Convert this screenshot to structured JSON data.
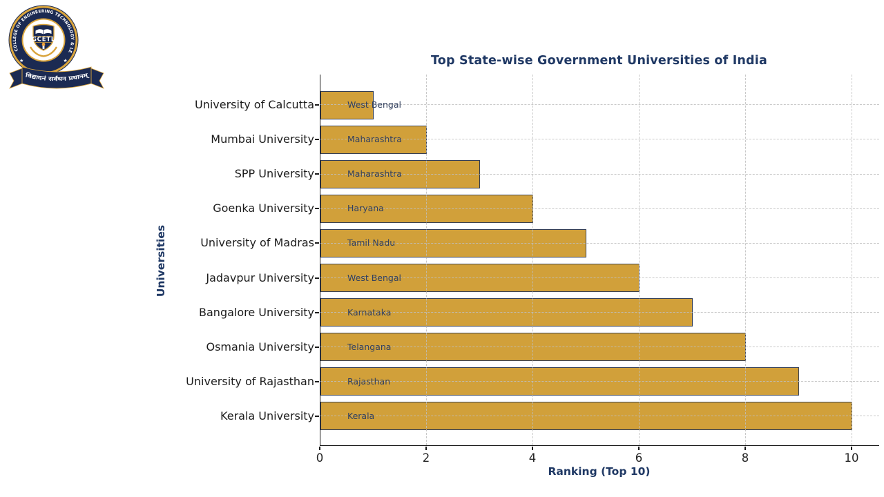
{
  "logo": {
    "ring_text": "GLOBAL COLLEGE OF ENGINEERING TECHNOLOGY & LEARNING",
    "acronym": "GCETL",
    "motto": "विद्यादनं सर्वधन प्रधानम्",
    "icons": {
      "star": "★"
    },
    "colors": {
      "navy": "#1b2a52",
      "gold": "#d9a43c",
      "flame": "#f2a33c"
    }
  },
  "chart_data": {
    "type": "bar",
    "orientation": "horizontal",
    "title": "Top State-wise Government Universities of India",
    "xlabel": "Ranking (Top 10)",
    "ylabel": "Universities",
    "categories": [
      "University of Calcutta",
      "Mumbai University",
      "SPP University",
      "Goenka University",
      "University of Madras",
      "Jadavpur University",
      "Bangalore University",
      "Osmania University",
      "University of Rajasthan",
      "Kerala University"
    ],
    "values": [
      1,
      2,
      3,
      4,
      5,
      6,
      7,
      8,
      9,
      10
    ],
    "bar_labels": [
      "West Bengal",
      "Maharashtra",
      "Maharashtra",
      "Haryana",
      "Tamil Nadu",
      "West Bengal",
      "Karnataka",
      "Telangana",
      "Rajasthan",
      "Kerala"
    ],
    "x_ticks": [
      0,
      2,
      4,
      6,
      8,
      10
    ],
    "xlim": [
      0,
      10.5
    ],
    "grid": "dashed",
    "legend": "none",
    "bar_color": "#d1a03a",
    "bar_edge_color": "#333e56",
    "title_color": "#1f3864"
  }
}
